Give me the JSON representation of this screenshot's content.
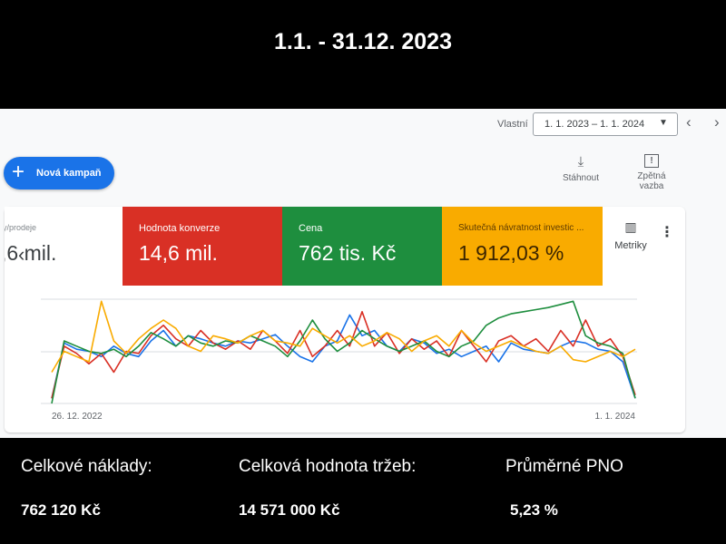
{
  "header": {
    "title": "1.1. - 31.12. 2023"
  },
  "toolbar": {
    "date_label": "Vlastní",
    "date_range": "1. 1. 2023 – 1. 1. 2024",
    "new_campaign": "Nová kampaň",
    "download": "Stáhnout",
    "feedback": "Zpětná vazba"
  },
  "metrics": [
    {
      "label": "y/prodeje",
      "value": ",6 mil."
    },
    {
      "label": "Hodnota konverze",
      "value": "14,6 mil.",
      "color": "#d93025"
    },
    {
      "label": "Cena",
      "value": "762 tis. Kč",
      "color": "#1e8e3e"
    },
    {
      "label": "Skutečná návratnost investic ...",
      "value": "1 912,03 %",
      "color": "#f9ab00"
    }
  ],
  "metrics_button": "Metriky",
  "chart_data": {
    "type": "line",
    "x": [
      "26. 12. 2022",
      null,
      null,
      null,
      null,
      null,
      null,
      null,
      null,
      null,
      null,
      null,
      null,
      null,
      null,
      null,
      null,
      null,
      null,
      null,
      null,
      null,
      null,
      null,
      null,
      null,
      null,
      null,
      null,
      null,
      null,
      null,
      null,
      null,
      null,
      null,
      null,
      null,
      null,
      null,
      null,
      null,
      null,
      null,
      null,
      null,
      null,
      "1. 1. 2024"
    ],
    "ylim": [
      0,
      100
    ],
    "series": [
      {
        "color": "#1a73e8",
        "values": [
          5,
          58,
          52,
          50,
          45,
          55,
          48,
          45,
          60,
          70,
          55,
          65,
          62,
          58,
          55,
          60,
          58,
          62,
          66,
          55,
          45,
          40,
          55,
          60,
          85,
          65,
          70,
          55,
          50,
          62,
          58,
          48,
          52,
          45,
          50,
          55,
          40,
          58,
          52,
          50,
          48,
          55,
          60,
          58,
          52,
          50,
          40,
          5
        ]
      },
      {
        "color": "#d93025",
        "values": [
          5,
          55,
          48,
          38,
          48,
          30,
          50,
          48,
          65,
          75,
          62,
          55,
          70,
          58,
          52,
          60,
          52,
          70,
          60,
          48,
          70,
          45,
          55,
          70,
          55,
          88,
          55,
          68,
          48,
          62,
          52,
          60,
          45,
          70,
          55,
          40,
          60,
          65,
          55,
          62,
          50,
          70,
          55,
          80,
          55,
          62,
          45,
          8
        ]
      },
      {
        "color": "#1e8e3e",
        "values": [
          0,
          60,
          55,
          50,
          48,
          52,
          45,
          55,
          68,
          62,
          55,
          65,
          58,
          55,
          60,
          58,
          65,
          60,
          55,
          45,
          60,
          80,
          62,
          50,
          58,
          70,
          62,
          55,
          50,
          55,
          60,
          50,
          45,
          55,
          60,
          75,
          82,
          86,
          88,
          90,
          92,
          95,
          98,
          65,
          58,
          55,
          48,
          5
        ]
      },
      {
        "color": "#f9ab00",
        "values": [
          30,
          50,
          45,
          40,
          98,
          60,
          48,
          62,
          72,
          80,
          72,
          55,
          50,
          65,
          62,
          58,
          65,
          70,
          60,
          58,
          55,
          72,
          65,
          58,
          65,
          55,
          60,
          68,
          62,
          50,
          60,
          65,
          55,
          70,
          58,
          50,
          55,
          60,
          55,
          50,
          48,
          55,
          42,
          40,
          45,
          50,
          45,
          52
        ]
      }
    ]
  },
  "footer": [
    {
      "label": "Celkové náklady:",
      "value": "762 120 Kč"
    },
    {
      "label": "Celková hodnota tržeb:",
      "value": "14 571 000 Kč"
    },
    {
      "label": "Průměrné PNO",
      "value": "5,23 %"
    }
  ]
}
